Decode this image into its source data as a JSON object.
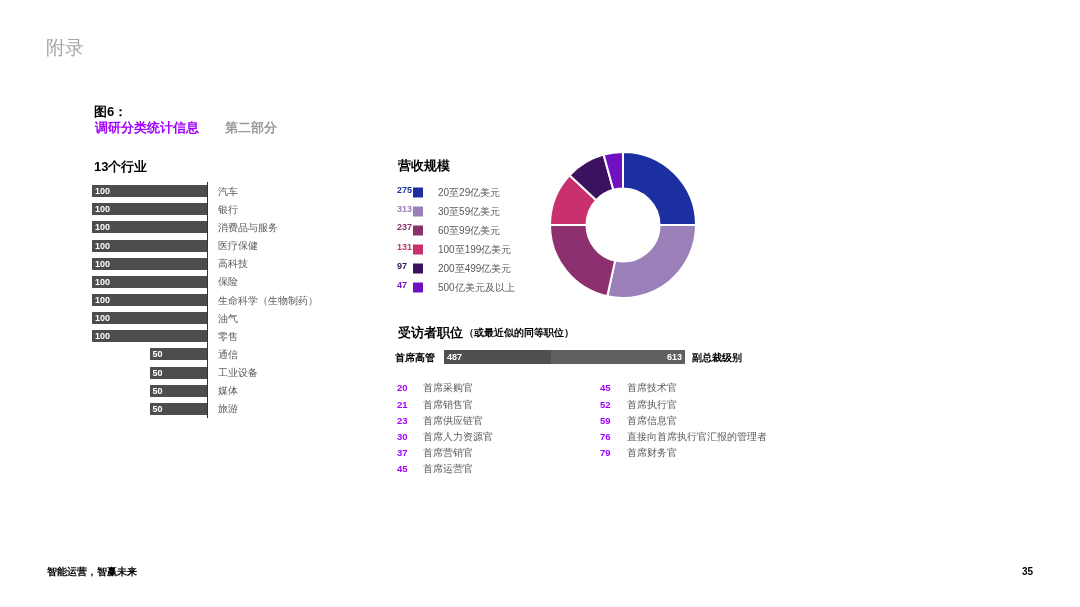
{
  "chart_data": [
    {
      "type": "other",
      "title": "附录",
      "annotations": [
        "图6：",
        "调研分类统计信息",
        "第二部分",
        "智能运营，智赢未来",
        "35"
      ]
    },
    {
      "type": "bar",
      "orientation": "horizontal",
      "title": "13个行业",
      "categories": [
        "汽车",
        "银行",
        "消费品与服务",
        "医疗保健",
        "高科技",
        "保险",
        "生命科学（生物制药）",
        "油气",
        "零售",
        "通信",
        "工业设备",
        "媒体",
        "旅游"
      ],
      "values": [
        100,
        100,
        100,
        100,
        100,
        100,
        100,
        100,
        100,
        50,
        50,
        50,
        50
      ],
      "color": "#4d4d4d",
      "xlim": [
        100,
        0
      ],
      "data_labels": true,
      "tick_labels": "y"
    },
    {
      "type": "donut",
      "title": "营收规模",
      "categories": [
        "20至29亿美元",
        "30至59亿美元",
        "60至99亿美元",
        "100至199亿美元",
        "200至499亿美元",
        "500亿美元及以上"
      ],
      "values": [
        275,
        313,
        237,
        131,
        97,
        47
      ],
      "colors": [
        "#1c2fa0",
        "#9a7fb8",
        "#8c3070",
        "#c8306e",
        "#3a1260",
        "#7010c0"
      ],
      "data_labels": true,
      "legend": "left"
    },
    {
      "type": "bar",
      "orientation": "horizontal",
      "stacked": true,
      "title": "受访者职位",
      "subtitle": "（或最近似的同等职位）",
      "categories": [
        null
      ],
      "series": [
        {
          "name": "首席高管",
          "color": "#505050",
          "values": [
            487
          ]
        },
        {
          "name": "副总裁级别",
          "color": "#606060",
          "values": [
            613
          ]
        }
      ],
      "xlim": [
        0,
        1100
      ],
      "data_labels": true,
      "tick_labels": false
    },
    {
      "type": "other",
      "categories": [
        "首席采购官",
        "首席销售官",
        "首席供应链官",
        "首席人力资源官",
        "首席营销官",
        "首席运营官",
        "首席技术官",
        "首席执行官",
        "首席信息官",
        "直接向首席执行官汇报的管理者",
        "首席财务官"
      ],
      "values": [
        20,
        21,
        23,
        30,
        37,
        45,
        45,
        52,
        59,
        76,
        79
      ],
      "color": "#a100ff",
      "data_labels": true
    }
  ]
}
